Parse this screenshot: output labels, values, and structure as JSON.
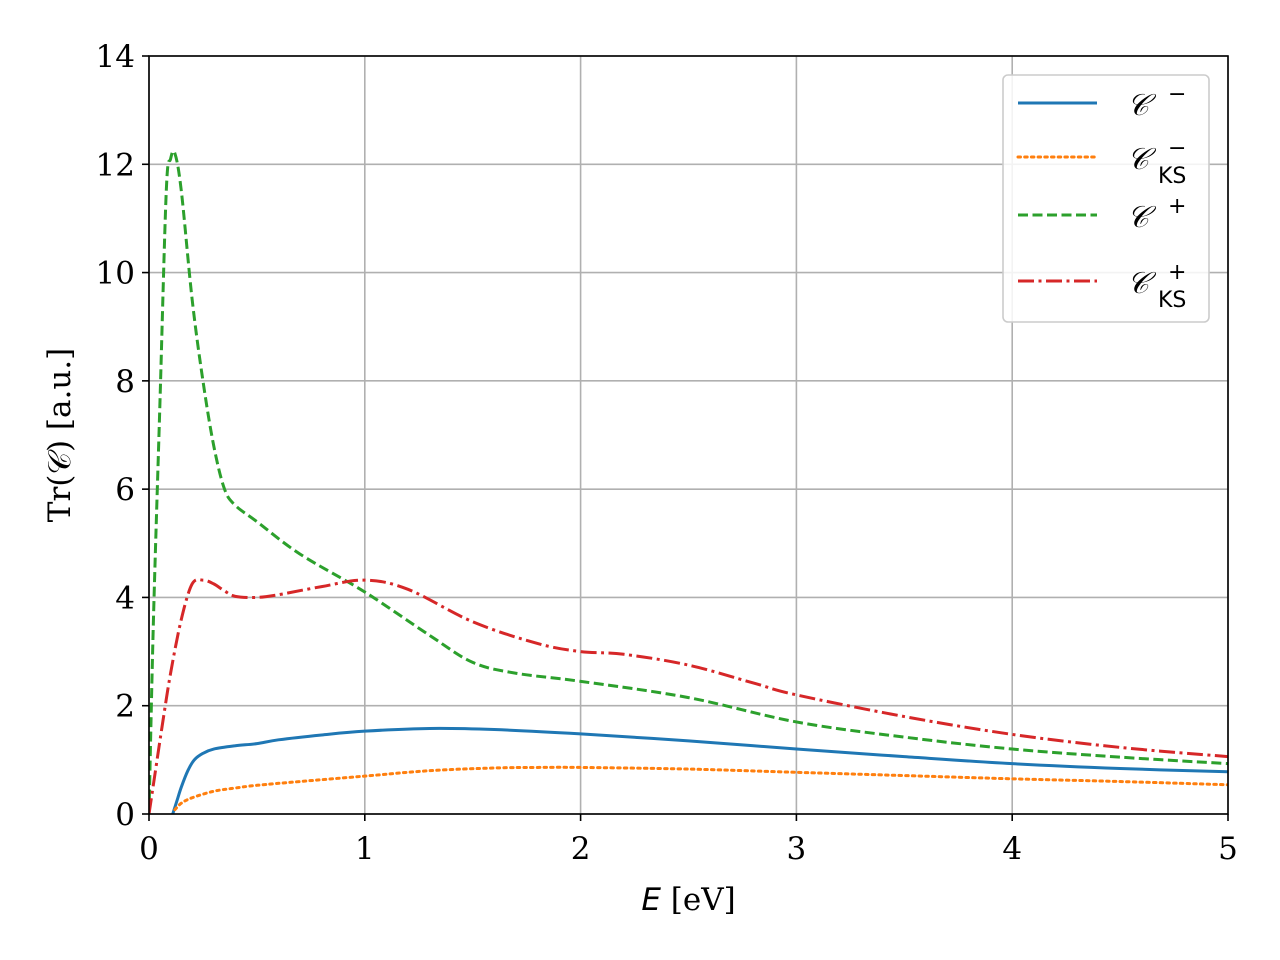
{
  "chart_data": {
    "type": "line",
    "xlabel": {
      "var": "E",
      "unit": " [eV]"
    },
    "ylabel": "Tr(𝒞) [a.u.]",
    "xlim": [
      0,
      5
    ],
    "ylim": [
      0,
      14
    ],
    "xticks": [
      "0",
      "1",
      "2",
      "3",
      "4",
      "5"
    ],
    "yticks": [
      "0",
      "2",
      "4",
      "6",
      "8",
      "10",
      "12",
      "14"
    ],
    "grid": true,
    "legend_position": "top-right",
    "series": [
      {
        "name": "𝒞⁻",
        "legend": {
          "base": "𝒞",
          "sup": "−",
          "sub": ""
        },
        "color": "#1f77b4",
        "style": "solid",
        "x": [
          0.11,
          0.13,
          0.15,
          0.18,
          0.21,
          0.25,
          0.3,
          0.4,
          0.5,
          0.6,
          0.8,
          1.0,
          1.3,
          1.6,
          2.0,
          2.5,
          3.0,
          3.5,
          4.0,
          4.5,
          5.0
        ],
        "y": [
          0.0,
          0.25,
          0.5,
          0.8,
          1.0,
          1.12,
          1.2,
          1.26,
          1.3,
          1.37,
          1.46,
          1.53,
          1.58,
          1.56,
          1.48,
          1.35,
          1.2,
          1.06,
          0.93,
          0.84,
          0.78
        ]
      },
      {
        "name": "𝒞⁻_KS",
        "legend": {
          "base": "𝒞",
          "sup": "−",
          "sub": "KS"
        },
        "color": "#ff7f0e",
        "style": "dotted",
        "x": [
          0.12,
          0.15,
          0.2,
          0.3,
          0.4,
          0.5,
          0.7,
          1.0,
          1.3,
          1.6,
          1.8,
          2.0,
          2.5,
          3.0,
          3.5,
          4.0,
          4.5,
          5.0
        ],
        "y": [
          0.08,
          0.2,
          0.3,
          0.42,
          0.48,
          0.53,
          0.6,
          0.7,
          0.8,
          0.85,
          0.86,
          0.86,
          0.83,
          0.77,
          0.71,
          0.65,
          0.6,
          0.54
        ]
      },
      {
        "name": "𝒞⁺",
        "legend": {
          "base": "𝒞",
          "sup": "+",
          "sub": ""
        },
        "color": "#2ca02c",
        "style": "dashed",
        "x": [
          0.0,
          0.02,
          0.05,
          0.08,
          0.1,
          0.12,
          0.15,
          0.2,
          0.25,
          0.3,
          0.35,
          0.4,
          0.5,
          0.7,
          1.0,
          1.3,
          1.5,
          1.7,
          2.0,
          2.5,
          3.0,
          3.5,
          4.0,
          4.5,
          5.0
        ],
        "y": [
          0.0,
          3.5,
          7.5,
          11.5,
          12.1,
          12.2,
          11.5,
          9.5,
          8.0,
          6.8,
          6.0,
          5.7,
          5.4,
          4.8,
          4.1,
          3.3,
          2.8,
          2.6,
          2.45,
          2.15,
          1.7,
          1.42,
          1.2,
          1.05,
          0.93
        ]
      },
      {
        "name": "𝒞⁺_KS",
        "legend": {
          "base": "𝒞",
          "sup": "+",
          "sub": "KS"
        },
        "color": "#d62728",
        "style": "dashdot",
        "x": [
          0.0,
          0.03,
          0.06,
          0.1,
          0.15,
          0.2,
          0.25,
          0.3,
          0.35,
          0.4,
          0.5,
          0.6,
          0.8,
          1.0,
          1.2,
          1.5,
          1.8,
          2.0,
          2.2,
          2.5,
          2.8,
          3.0,
          3.5,
          4.0,
          4.5,
          5.0
        ],
        "y": [
          0.0,
          0.8,
          1.6,
          2.6,
          3.6,
          4.25,
          4.32,
          4.25,
          4.12,
          4.02,
          4.0,
          4.05,
          4.2,
          4.32,
          4.15,
          3.55,
          3.15,
          3.0,
          2.95,
          2.75,
          2.42,
          2.2,
          1.8,
          1.47,
          1.23,
          1.06
        ]
      }
    ]
  }
}
